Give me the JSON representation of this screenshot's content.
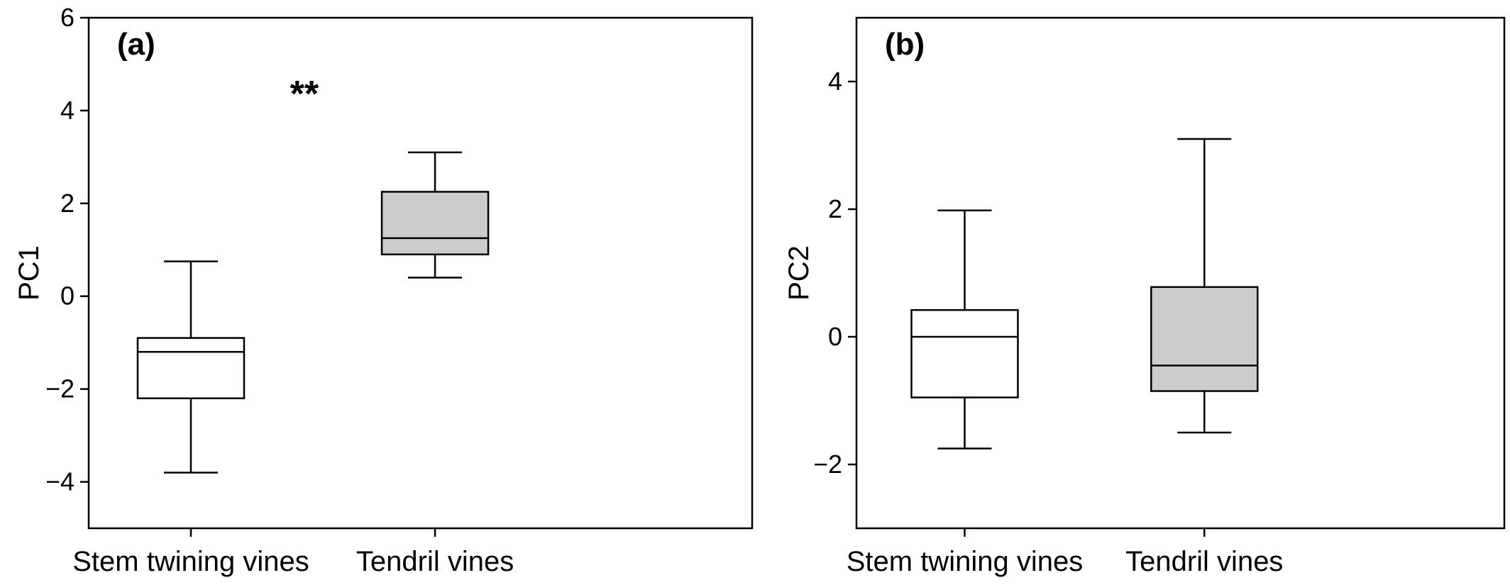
{
  "chart_data": [
    {
      "type": "box",
      "panel_label": "(a)",
      "ylabel": "PC1",
      "xlabel": "",
      "ylim": [
        -5,
        6
      ],
      "yticks": [
        -4,
        -2,
        0,
        2,
        4,
        6
      ],
      "yticks_labels": [
        "−4",
        "−2",
        "0",
        "2",
        "4",
        "6"
      ],
      "categories": [
        "Stem twining vines",
        "Tendril vines"
      ],
      "boxes": [
        {
          "category": "Stem twining vines",
          "whisker_low": -3.8,
          "q1": -2.2,
          "median": -1.2,
          "q3": -0.9,
          "whisker_high": 0.75,
          "fill": "#ffffff"
        },
        {
          "category": "Tendril vines",
          "whisker_low": 0.4,
          "q1": 0.9,
          "median": 1.25,
          "q3": 2.25,
          "whisker_high": 3.1,
          "fill": "#cccccc"
        }
      ],
      "annotation": "**",
      "annotation_position": "top-center"
    },
    {
      "type": "box",
      "panel_label": "(b)",
      "ylabel": "PC2",
      "xlabel": "",
      "ylim": [
        -3,
        5
      ],
      "yticks": [
        -2,
        0,
        2,
        4
      ],
      "yticks_labels": [
        "−2",
        "0",
        "2",
        "4"
      ],
      "categories": [
        "Stem twining vines",
        "Tendril vines"
      ],
      "boxes": [
        {
          "category": "Stem twining vines",
          "whisker_low": -1.75,
          "q1": -0.95,
          "median": 0.0,
          "q3": 0.42,
          "whisker_high": 1.98,
          "fill": "#ffffff"
        },
        {
          "category": "Tendril vines",
          "whisker_low": -1.5,
          "q1": -0.85,
          "median": -0.45,
          "q3": 0.78,
          "whisker_high": 3.1,
          "fill": "#cccccc"
        }
      ],
      "annotation": "",
      "annotation_position": ""
    }
  ],
  "colors": {
    "axis": "#000000",
    "box_stem": "#ffffff",
    "box_tendril": "#cccccc"
  }
}
